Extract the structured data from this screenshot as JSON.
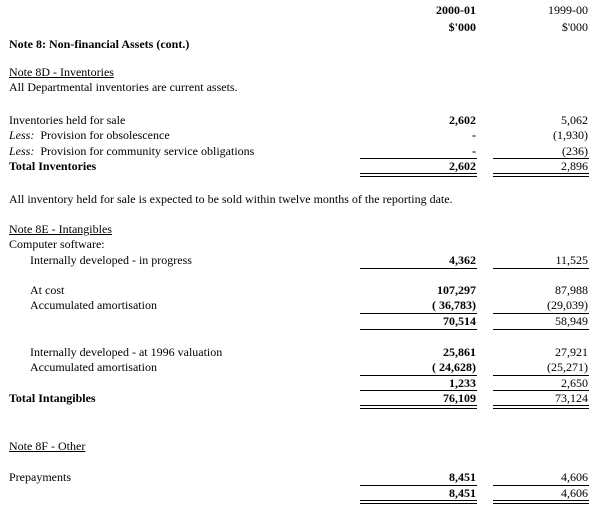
{
  "header": {
    "col1_year": "2000-01",
    "col1_unit": "$'000",
    "col2_year": "1999-00",
    "col2_unit": "$'000"
  },
  "title": "Note 8:  Non-financial Assets (cont.)",
  "note8d": {
    "heading": "Note 8D - Inventories",
    "intro": "All Departmental inventories are current assets.",
    "rows": [
      {
        "prefix": "",
        "label": "Inventories held for sale",
        "v1": "2,602",
        "v2": "5,062"
      },
      {
        "prefix": "Less:",
        "label": "  Provision for obsolescence",
        "v1": "-",
        "v2": "(1,930)"
      },
      {
        "prefix": "Less:",
        "label": "  Provision for community service obligations",
        "v1": "-",
        "v2": "(236)"
      }
    ],
    "total": {
      "label": "Total Inventories",
      "v1": "2,602",
      "v2": "2,896"
    },
    "note": "All inventory held for sale is expected to be sold within twelve months of the reporting date."
  },
  "note8e": {
    "heading": "Note 8E - Intangibles",
    "sub": "Computer software:",
    "in_progress": {
      "label": "Internally developed - in progress",
      "v1": "4,362",
      "v2": "11,525"
    },
    "at_cost": {
      "label": "At cost",
      "v1": "107,297",
      "v2": "87,988"
    },
    "amort1": {
      "label": "Accumulated amortisation",
      "v1": "( 36,783)",
      "v2": "(29,039)"
    },
    "sub1": {
      "v1": "70,514",
      "v2": "58,949"
    },
    "valuation": {
      "label": "Internally developed - at 1996 valuation",
      "v1": "25,861",
      "v2": "27,921"
    },
    "amort2": {
      "label": "Accumulated amortisation",
      "v1": "( 24,628)",
      "v2": "(25,271)"
    },
    "sub2": {
      "v1": "1,233",
      "v2": "2,650"
    },
    "total": {
      "label": "Total Intangibles",
      "v1": "76,109",
      "v2": "73,124"
    }
  },
  "note8f": {
    "heading": "Note 8F - Other",
    "prepayments": {
      "label": "Prepayments",
      "v1": "8,451",
      "v2": "4,606"
    },
    "total": {
      "v1": "8,451",
      "v2": "4,606"
    }
  }
}
